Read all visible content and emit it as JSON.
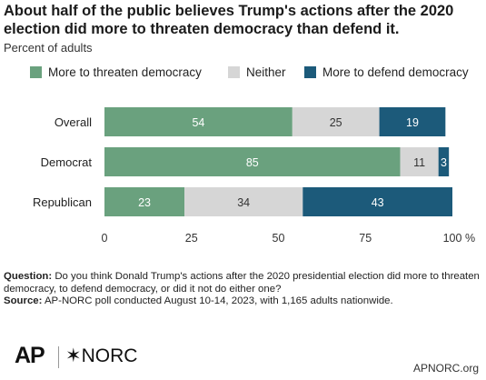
{
  "header": {
    "title": "About half of the public believes Trump's actions after the 2020 election did more to threaten democracy than defend it.",
    "subtitle": "Percent of adults"
  },
  "legend": [
    {
      "label": "More to threaten democracy",
      "color": "#6aa17e"
    },
    {
      "label": "Neither",
      "color": "#d6d6d6"
    },
    {
      "label": "More to defend democracy",
      "color": "#1c5a7a"
    }
  ],
  "chart_data": {
    "type": "bar",
    "orientation": "horizontal",
    "stacked": true,
    "categories": [
      "Overall",
      "Democrat",
      "Republican"
    ],
    "series": [
      {
        "name": "More to threaten democracy",
        "values": [
          54,
          85,
          23
        ],
        "color": "#6aa17e"
      },
      {
        "name": "Neither",
        "values": [
          25,
          11,
          34
        ],
        "color": "#d6d6d6"
      },
      {
        "name": "More to defend democracy",
        "values": [
          19,
          3,
          43
        ],
        "color": "#1c5a7a"
      }
    ],
    "xlim": [
      0,
      100
    ],
    "xticks": [
      "0",
      "25",
      "50",
      "75",
      "100"
    ],
    "x_unit": "%",
    "grid": false,
    "legend_position": "top"
  },
  "footnote": {
    "question_label": "Question:",
    "question_text": " Do you think Donald Trump's actions after the 2020 presidential election did more to threaten democracy, to defend democracy, or did it not do either one?",
    "source_label": "Source:",
    "source_text": " AP-NORC poll conducted August 10-14, 2023, with 1,165 adults nationwide."
  },
  "branding": {
    "ap_logo": "AP",
    "norc_logo": "✶NORC",
    "site": "APNORC.org"
  }
}
